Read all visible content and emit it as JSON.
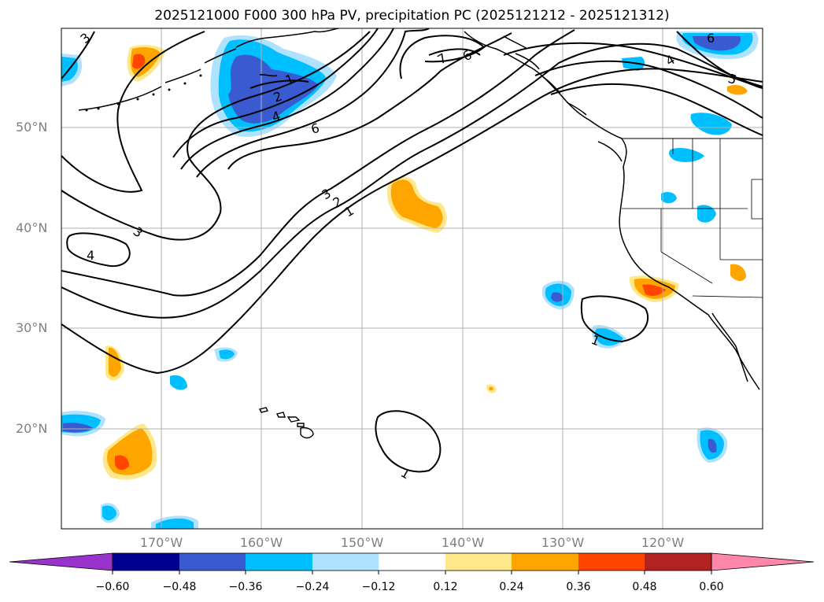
{
  "title": "2025121000 F000 300 hPa PV, precipitation PC (2025121212 - 2025121312)",
  "lat_labels": [
    "50°N",
    "40°N",
    "30°N",
    "20°N"
  ],
  "lon_labels": [
    "170°W",
    "160°W",
    "150°W",
    "140°W",
    "130°W",
    "120°W"
  ],
  "colorbar": {
    "ticks": [
      "−0.60",
      "−0.48",
      "−0.36",
      "−0.24",
      "−0.12",
      "0.12",
      "0.24",
      "0.36",
      "0.48",
      "0.60"
    ],
    "colors": [
      "#9933cc",
      "#000090",
      "#3a5bd0",
      "#00bfff",
      "#aee2ff",
      "#ffffff",
      "#ffe88a",
      "#ffa500",
      "#ff4500",
      "#b22222",
      "#ff88aa"
    ]
  },
  "contour_labels": [
    "3",
    "3",
    "4",
    "1",
    "2",
    "4",
    "6",
    "3",
    "2",
    "1",
    "7",
    "6",
    "4",
    "5",
    "6",
    "1",
    "1"
  ],
  "colors": {
    "grid": "#b0b0b0",
    "contour": "#000000",
    "coast": "#000000"
  }
}
